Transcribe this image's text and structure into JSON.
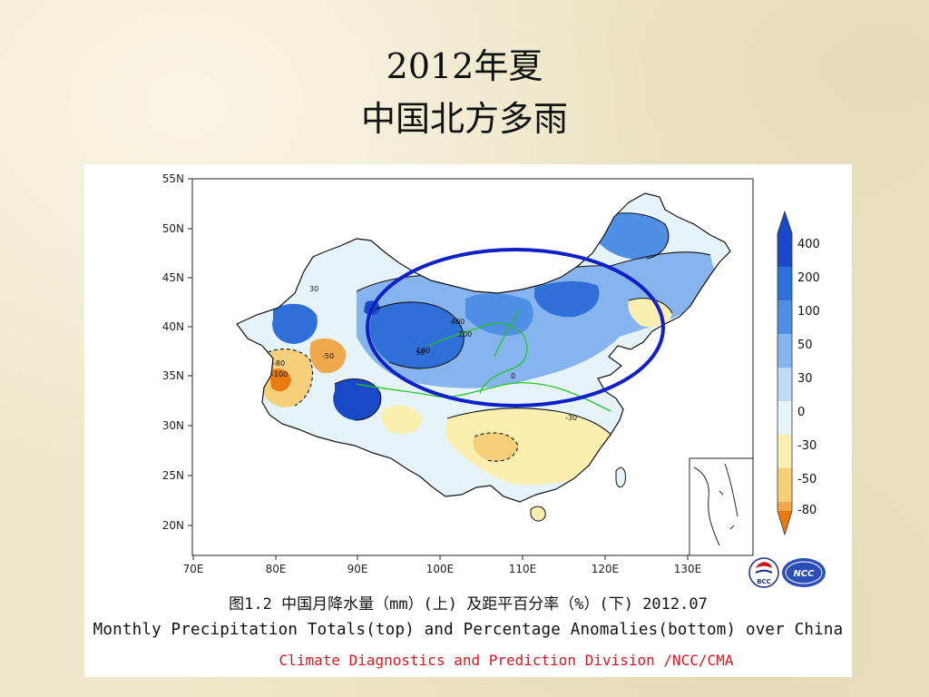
{
  "slide": {
    "title_line1": "2012年夏",
    "title_line2": "中国北方多雨"
  },
  "map": {
    "lat_ticks": [
      "55N",
      "50N",
      "45N",
      "40N",
      "35N",
      "30N",
      "25N",
      "20N"
    ],
    "lon_ticks": [
      "70E",
      "80E",
      "90E",
      "100E",
      "110E",
      "120E",
      "130E"
    ],
    "contour_labels": [
      "50",
      "100",
      "30",
      "0",
      "-30",
      "-50",
      "-80",
      "200",
      "400",
      "-100"
    ],
    "highlight": "blue ellipse around northern China"
  },
  "colorbar": {
    "labels": [
      "400",
      "200",
      "100",
      "50",
      "30",
      "0",
      "-30",
      "-50",
      "-80"
    ],
    "colors": [
      "#1948c8",
      "#2e6fd8",
      "#4f8fe6",
      "#86b4ee",
      "#bfdaf7",
      "#e6f4fa",
      "#fbefb0",
      "#f6cf7a",
      "#efa84c",
      "#e97a12"
    ]
  },
  "logos": {
    "left": "BCC",
    "right": "NCC"
  },
  "caption": {
    "zh": "图1.2  中国月降水量（mm）(上) 及距平百分率（%）(下)     2012.07",
    "en": "Monthly Precipitation Totals(top) and Percentage Anomalies(bottom) over China",
    "credit": "Climate Diagnostics and Prediction Division /NCC/CMA"
  }
}
